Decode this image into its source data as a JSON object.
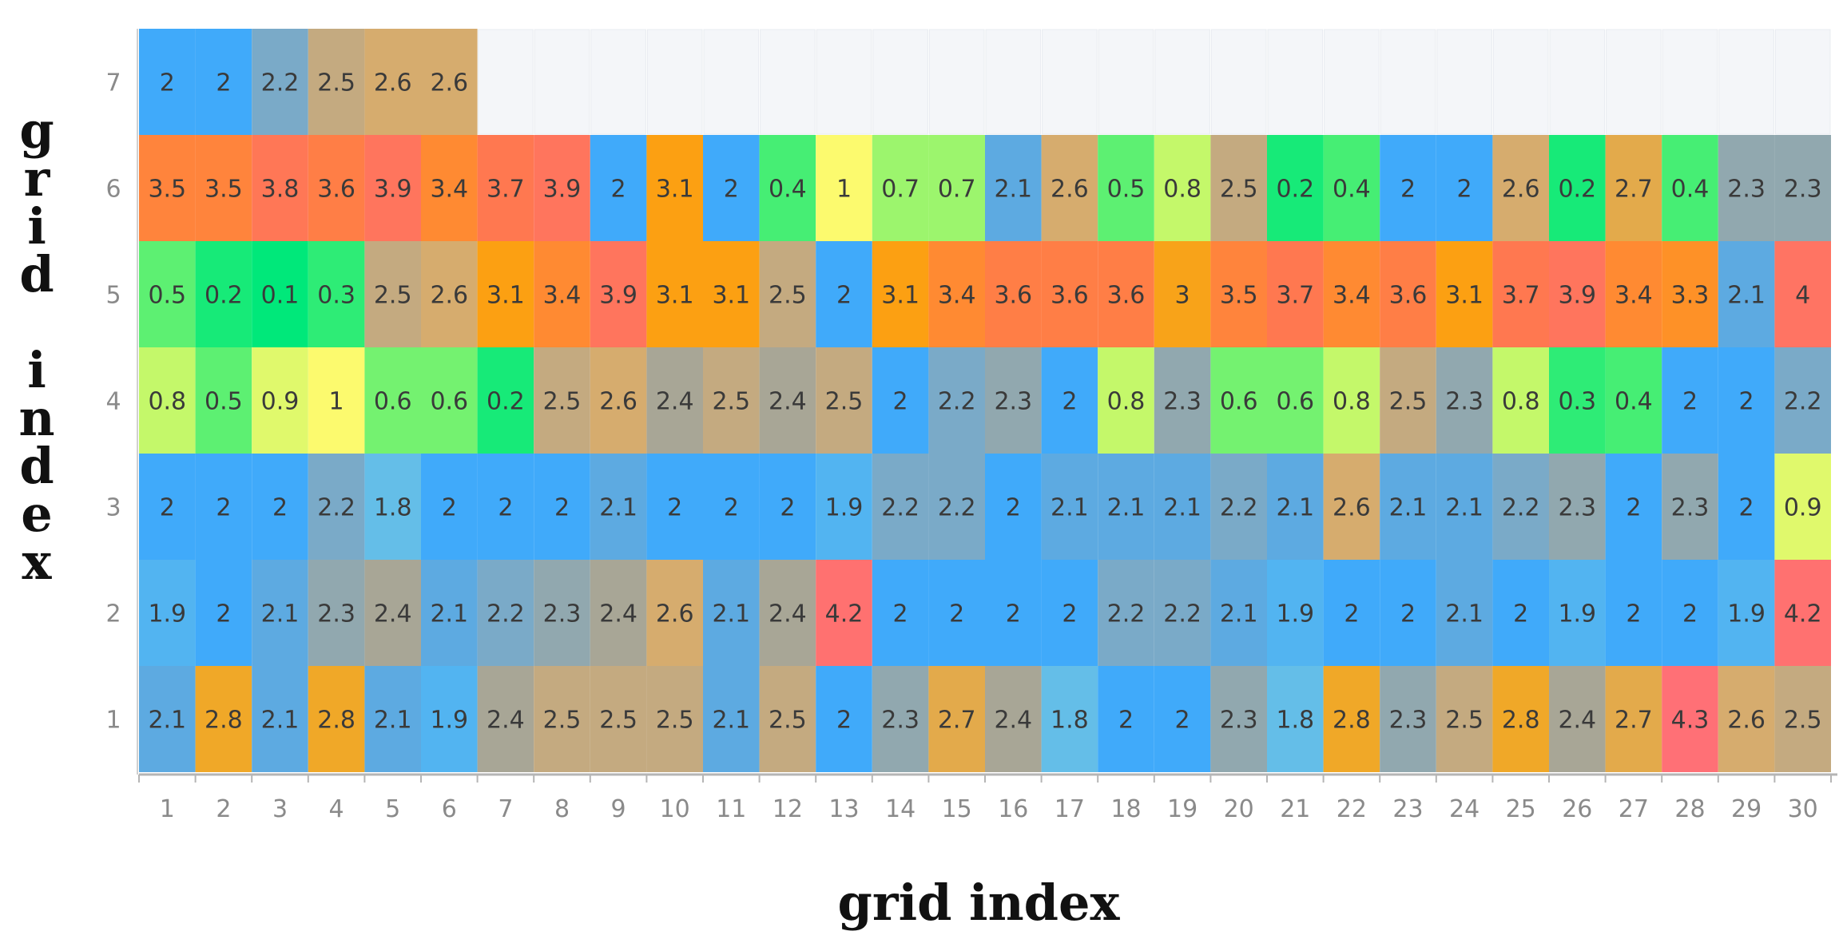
{
  "chart_data": {
    "type": "heatmap",
    "xlabel": "grid index",
    "ylabel": "grid index",
    "x_ticks": [
      "1",
      "2",
      "3",
      "4",
      "5",
      "6",
      "7",
      "8",
      "9",
      "10",
      "11",
      "12",
      "13",
      "14",
      "15",
      "16",
      "17",
      "18",
      "19",
      "20",
      "21",
      "22",
      "23",
      "24",
      "25",
      "26",
      "27",
      "28",
      "29",
      "30"
    ],
    "y_ticks": [
      "7",
      "6",
      "5",
      "4",
      "3",
      "2",
      "1"
    ],
    "rows": [
      {
        "y": "7",
        "values": [
          2,
          2,
          2.2,
          2.5,
          2.6,
          2.6
        ]
      },
      {
        "y": "6",
        "values": [
          3.5,
          3.5,
          3.8,
          3.6,
          3.9,
          3.4,
          3.7,
          3.9,
          2,
          3.1,
          2,
          0.4,
          1,
          0.7,
          0.7,
          2.1,
          2.6,
          0.5,
          0.8,
          2.5,
          0.2,
          0.4,
          2,
          2,
          2.6,
          0.2,
          2.7,
          0.4,
          2.3,
          2.3
        ]
      },
      {
        "y": "5",
        "values": [
          0.5,
          0.2,
          0.1,
          0.3,
          2.5,
          2.6,
          3.1,
          3.4,
          3.9,
          3.1,
          3.1,
          2.5,
          2,
          3.1,
          3.4,
          3.6,
          3.6,
          3.6,
          3,
          3.5,
          3.7,
          3.4,
          3.6,
          3.1,
          3.7,
          3.9,
          3.4,
          3.3,
          2.1,
          4
        ]
      },
      {
        "y": "4",
        "values": [
          0.8,
          0.5,
          0.9,
          1,
          0.6,
          0.6,
          0.2,
          2.5,
          2.6,
          2.4,
          2.5,
          2.4,
          2.5,
          2,
          2.2,
          2.3,
          2,
          0.8,
          2.3,
          0.6,
          0.6,
          0.8,
          2.5,
          2.3,
          0.8,
          0.3,
          0.4,
          2,
          2,
          2.2
        ]
      },
      {
        "y": "3",
        "values": [
          2,
          2,
          2,
          2.2,
          1.8,
          2,
          2,
          2,
          2.1,
          2,
          2,
          2,
          1.9,
          2.2,
          2.2,
          2,
          2.1,
          2.1,
          2.1,
          2.2,
          2.1,
          2.6,
          2.1,
          2.1,
          2.2,
          2.3,
          2,
          2.3,
          2,
          0.9
        ]
      },
      {
        "y": "2",
        "values": [
          1.9,
          2,
          2.1,
          2.3,
          2.4,
          2.1,
          2.2,
          2.3,
          2.4,
          2.6,
          2.1,
          2.4,
          4.2,
          2,
          2,
          2,
          2,
          2.2,
          2.2,
          2.1,
          1.9,
          2,
          2,
          2.1,
          2,
          1.9,
          2,
          2,
          1.9,
          4.2
        ]
      },
      {
        "y": "1",
        "values": [
          2.1,
          2.8,
          2.1,
          2.8,
          2.1,
          1.9,
          2.4,
          2.5,
          2.5,
          2.5,
          2.1,
          2.5,
          2,
          2.3,
          2.7,
          2.4,
          1.8,
          2,
          2,
          2.3,
          1.8,
          2.8,
          2.3,
          2.5,
          2.8,
          2.4,
          2.7,
          4.3,
          2.6,
          2.5
        ]
      }
    ],
    "colors": {
      "empty_cell": "#f4f6f9",
      "gridline": "#e8ecf1",
      "axis": "#b5b5b5"
    },
    "legend": "none",
    "grid": true
  }
}
